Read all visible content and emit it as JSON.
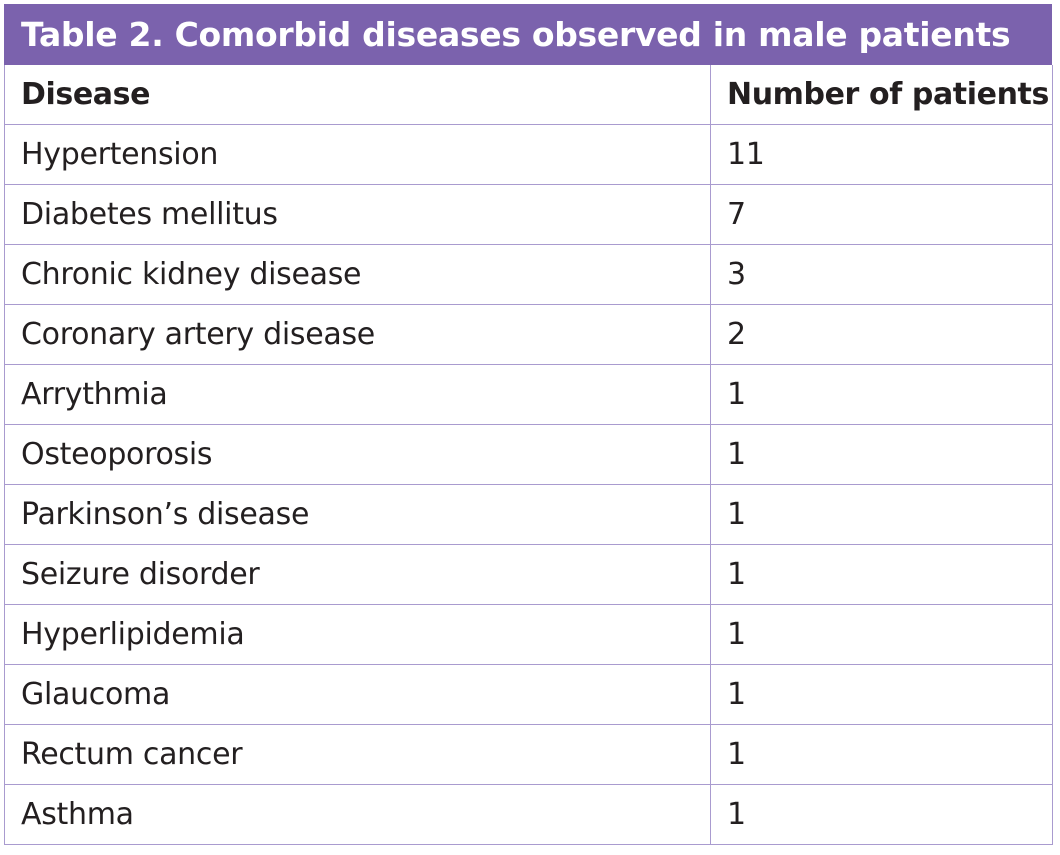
{
  "title": "Table 2. Comorbid diseases observed in male patients",
  "accent_color": "#7b62ad",
  "border_color": "#a99bcf",
  "columns": {
    "disease": "Disease",
    "count": "Number of patients"
  },
  "rows": [
    {
      "disease": "Hypertension",
      "count": "11"
    },
    {
      "disease": "Diabetes mellitus",
      "count": "7"
    },
    {
      "disease": "Chronic kidney disease",
      "count": "3"
    },
    {
      "disease": "Coronary artery disease",
      "count": "2"
    },
    {
      "disease": "Arrythmia",
      "count": "1"
    },
    {
      "disease": "Osteoporosis",
      "count": "1"
    },
    {
      "disease": "Parkinson’s disease",
      "count": "1"
    },
    {
      "disease": "Seizure disorder",
      "count": "1"
    },
    {
      "disease": "Hyperlipidemia",
      "count": "1"
    },
    {
      "disease": "Glaucoma",
      "count": "1"
    },
    {
      "disease": "Rectum cancer",
      "count": "1"
    },
    {
      "disease": "Asthma",
      "count": "1"
    }
  ]
}
